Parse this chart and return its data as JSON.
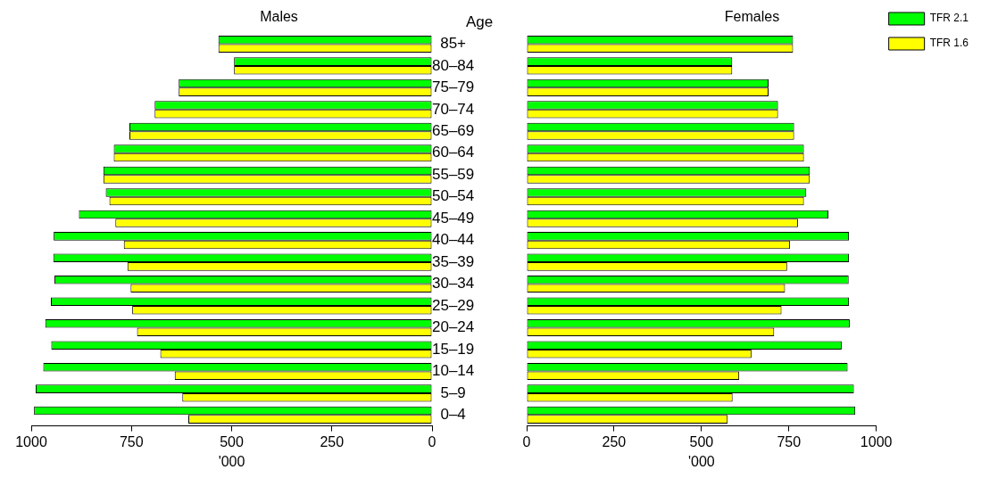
{
  "chart_data": [
    {
      "type": "bar",
      "orientation": "horizontal",
      "title": "Males",
      "xlabel": "'000",
      "ylabel": "Age",
      "categories": [
        "85+",
        "80–84",
        "75–79",
        "70–74",
        "65–69",
        "60–64",
        "55–59",
        "50–54",
        "45–49",
        "40–44",
        "35–39",
        "30–34",
        "25–29",
        "20–24",
        "15–19",
        "10–14",
        "5–9",
        "0–4"
      ],
      "series": [
        {
          "color": "#00ff00",
          "values": [
            533,
            494,
            632,
            692,
            755,
            794,
            820,
            814,
            881,
            944,
            945,
            942,
            951,
            965,
            950,
            970,
            989,
            993
          ]
        },
        {
          "color": "#ffff00",
          "values": [
            533,
            494,
            632,
            692,
            755,
            794,
            820,
            805,
            790,
            769,
            760,
            752,
            748,
            736,
            678,
            642,
            623,
            608
          ]
        }
      ],
      "xlim": [
        1000,
        0
      ],
      "xticks": [
        1000,
        750,
        500,
        250,
        0
      ],
      "grid": false
    },
    {
      "type": "bar",
      "orientation": "horizontal",
      "title": "Females",
      "xlabel": "'000",
      "categories": [
        null,
        null,
        null,
        null,
        null,
        null,
        null,
        null,
        null,
        null,
        null,
        null,
        null,
        null,
        null,
        null,
        null,
        null
      ],
      "series": [
        {
          "name": "TFR 2.1",
          "color": "#00ff00",
          "values": [
            762,
            588,
            692,
            719,
            765,
            793,
            810,
            800,
            863,
            922,
            922,
            921,
            922,
            924,
            901,
            918,
            936,
            940
          ]
        },
        {
          "name": "TFR 1.6",
          "color": "#ffff00",
          "values": [
            762,
            588,
            692,
            719,
            765,
            793,
            810,
            793,
            776,
            753,
            745,
            739,
            729,
            708,
            643,
            608,
            589,
            575
          ]
        }
      ],
      "xlim": [
        0,
        1000
      ],
      "xticks": [
        0,
        250,
        500,
        750,
        1000
      ],
      "tick_labels": "x",
      "grid": false,
      "legend": "right"
    }
  ]
}
